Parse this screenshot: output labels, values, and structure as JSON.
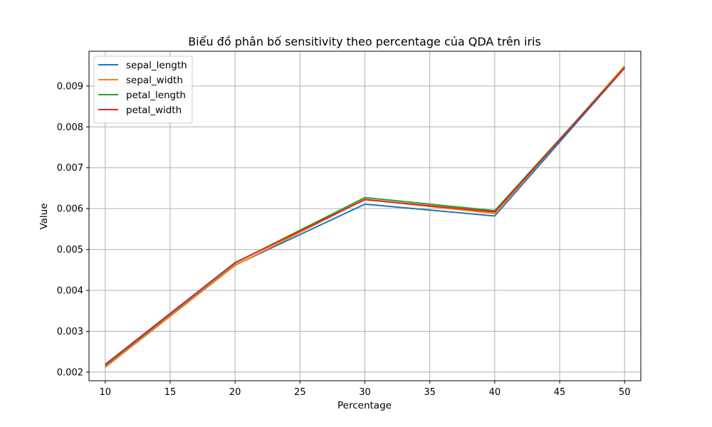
{
  "chart_data": {
    "type": "line",
    "title": "Biểu đồ phân bố sensitivity theo percentage của QDA trên iris",
    "xlabel": "Percentage",
    "ylabel": "Value",
    "x": [
      10,
      20,
      30,
      40,
      50
    ],
    "xlim": [
      8.75,
      51.25
    ],
    "ylim": [
      0.00179,
      0.00985
    ],
    "xticks": [
      "10",
      "15",
      "20",
      "25",
      "30",
      "35",
      "40",
      "45",
      "50"
    ],
    "xtick_values": [
      10,
      15,
      20,
      25,
      30,
      35,
      40,
      45,
      50
    ],
    "yticks": [
      "0.002",
      "0.003",
      "0.004",
      "0.005",
      "0.006",
      "0.007",
      "0.008",
      "0.009"
    ],
    "ytick_values": [
      0.002,
      0.003,
      0.004,
      0.005,
      0.006,
      0.007,
      0.008,
      0.009
    ],
    "grid": true,
    "legend_position": "top-left",
    "series": [
      {
        "name": "sepal_length",
        "color": "#1f77b4",
        "values": [
          0.00214,
          0.00462,
          0.00611,
          0.00582,
          0.00944
        ]
      },
      {
        "name": "sepal_width",
        "color": "#ff7f0e",
        "values": [
          0.00212,
          0.00461,
          0.00623,
          0.00588,
          0.00949
        ]
      },
      {
        "name": "petal_length",
        "color": "#2ca02c",
        "values": [
          0.00218,
          0.00467,
          0.00627,
          0.00595,
          0.00945
        ]
      },
      {
        "name": "petal_width",
        "color": "#d62728",
        "values": [
          0.00219,
          0.00468,
          0.00622,
          0.00592,
          0.00944
        ]
      }
    ]
  }
}
